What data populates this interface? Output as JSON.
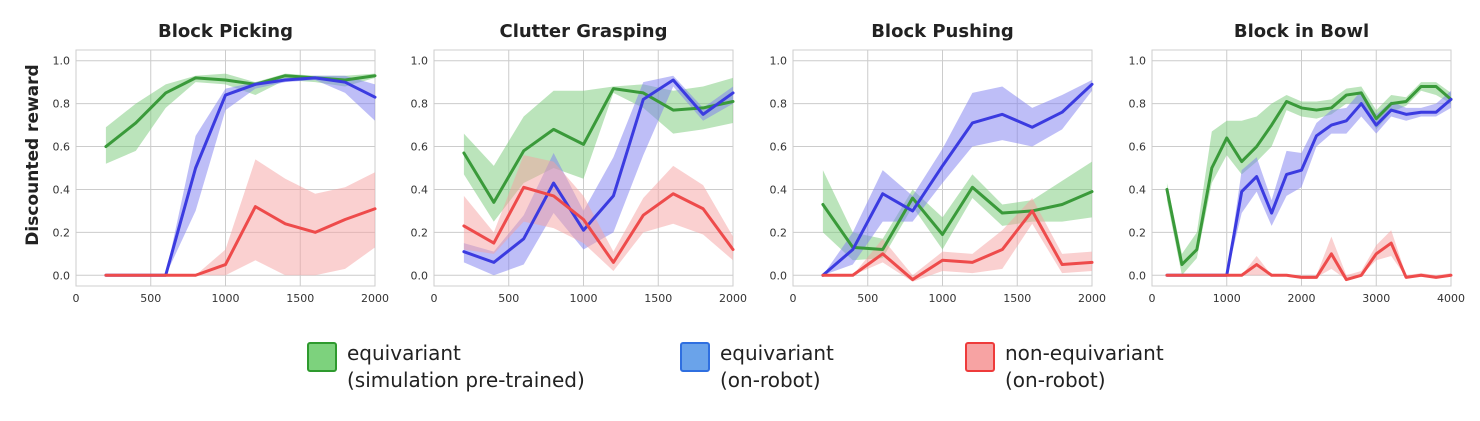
{
  "ylabel": "Discounted reward",
  "chart_data": [
    {
      "type": "line",
      "title": "Block Picking",
      "xlim": [
        0,
        2000
      ],
      "ylim": [
        -0.05,
        1.05
      ],
      "xticks": [
        0,
        500,
        1000,
        1500,
        2000
      ],
      "xtick_labels": [
        "0",
        "500",
        "1000",
        "1500",
        "2000"
      ],
      "yticks": [
        0.0,
        0.2,
        0.4,
        0.6,
        0.8,
        1.0
      ],
      "ytick_labels": [
        "0.0",
        "0.2",
        "0.4",
        "0.6",
        "0.8",
        "1.0"
      ],
      "grid": true,
      "x": [
        200,
        400,
        600,
        800,
        1000,
        1200,
        1400,
        1600,
        1800,
        2000
      ],
      "series": [
        {
          "key": "pre",
          "values": [
            0.6,
            0.71,
            0.85,
            0.92,
            0.91,
            0.89,
            0.93,
            0.92,
            0.91,
            0.93
          ],
          "lower": [
            0.52,
            0.58,
            0.78,
            0.9,
            0.89,
            0.84,
            0.91,
            0.9,
            0.88,
            0.92
          ],
          "upper": [
            0.69,
            0.8,
            0.89,
            0.93,
            0.94,
            0.9,
            0.94,
            0.93,
            0.93,
            0.94
          ]
        },
        {
          "key": "equi",
          "values": [
            0,
            0,
            0,
            0.5,
            0.84,
            0.89,
            0.91,
            0.92,
            0.9,
            0.83
          ],
          "lower": [
            0,
            0,
            0,
            0.3,
            0.77,
            0.87,
            0.9,
            0.91,
            0.85,
            0.72
          ],
          "upper": [
            0,
            0,
            0,
            0.65,
            0.87,
            0.9,
            0.92,
            0.93,
            0.93,
            0.89
          ]
        },
        {
          "key": "non",
          "values": [
            0,
            0,
            0,
            0,
            0.05,
            0.32,
            0.24,
            0.2,
            0.26,
            0.31
          ],
          "lower": [
            0,
            0,
            0,
            0,
            0.0,
            0.07,
            0.0,
            0.0,
            0.03,
            0.13
          ],
          "upper": [
            0,
            0,
            0,
            0,
            0.12,
            0.54,
            0.45,
            0.38,
            0.41,
            0.48
          ]
        }
      ]
    },
    {
      "type": "line",
      "title": "Clutter Grasping",
      "xlim": [
        0,
        2000
      ],
      "ylim": [
        -0.05,
        1.05
      ],
      "xticks": [
        0,
        500,
        1000,
        1500,
        2000
      ],
      "xtick_labels": [
        "0",
        "500",
        "1000",
        "1500",
        "2000"
      ],
      "yticks": [
        0.0,
        0.2,
        0.4,
        0.6,
        0.8,
        1.0
      ],
      "ytick_labels": [
        "0.0",
        "0.2",
        "0.4",
        "0.6",
        "0.8",
        "1.0"
      ],
      "grid": true,
      "x": [
        200,
        400,
        600,
        800,
        1000,
        1200,
        1400,
        1600,
        1800,
        2000
      ],
      "series": [
        {
          "key": "pre",
          "values": [
            0.57,
            0.34,
            0.58,
            0.68,
            0.61,
            0.87,
            0.85,
            0.77,
            0.78,
            0.81
          ],
          "lower": [
            0.47,
            0.25,
            0.43,
            0.5,
            0.45,
            0.85,
            0.78,
            0.66,
            0.68,
            0.71
          ],
          "upper": [
            0.66,
            0.51,
            0.74,
            0.86,
            0.86,
            0.88,
            0.89,
            0.86,
            0.88,
            0.92
          ]
        },
        {
          "key": "equi",
          "values": [
            0.11,
            0.06,
            0.17,
            0.43,
            0.21,
            0.37,
            0.82,
            0.91,
            0.75,
            0.85
          ],
          "lower": [
            0.06,
            0.0,
            0.05,
            0.29,
            0.12,
            0.2,
            0.56,
            0.88,
            0.72,
            0.8
          ],
          "upper": [
            0.15,
            0.11,
            0.28,
            0.57,
            0.3,
            0.55,
            0.9,
            0.93,
            0.78,
            0.88
          ]
        },
        {
          "key": "non",
          "values": [
            0.23,
            0.15,
            0.41,
            0.37,
            0.26,
            0.06,
            0.28,
            0.38,
            0.31,
            0.12
          ],
          "lower": [
            0.12,
            0.1,
            0.25,
            0.22,
            0.15,
            0.02,
            0.2,
            0.24,
            0.19,
            0.07
          ],
          "upper": [
            0.37,
            0.2,
            0.56,
            0.53,
            0.37,
            0.11,
            0.36,
            0.51,
            0.42,
            0.18
          ]
        }
      ]
    },
    {
      "type": "line",
      "title": "Block Pushing",
      "xlim": [
        0,
        2000
      ],
      "ylim": [
        -0.05,
        1.05
      ],
      "xticks": [
        0,
        500,
        1000,
        1500,
        2000
      ],
      "xtick_labels": [
        "0",
        "500",
        "1000",
        "1500",
        "2000"
      ],
      "yticks": [
        0.0,
        0.2,
        0.4,
        0.6,
        0.8,
        1.0
      ],
      "ytick_labels": [
        "0.0",
        "0.2",
        "0.4",
        "0.6",
        "0.8",
        "1.0"
      ],
      "grid": true,
      "x": [
        200,
        400,
        600,
        800,
        1000,
        1200,
        1400,
        1600,
        1800,
        2000
      ],
      "series": [
        {
          "key": "pre",
          "values": [
            0.33,
            0.13,
            0.12,
            0.36,
            0.19,
            0.41,
            0.29,
            0.3,
            0.33,
            0.39
          ],
          "lower": [
            0.2,
            0.07,
            0.08,
            0.32,
            0.12,
            0.36,
            0.23,
            0.25,
            0.25,
            0.27
          ],
          "upper": [
            0.49,
            0.2,
            0.17,
            0.4,
            0.27,
            0.47,
            0.33,
            0.35,
            0.44,
            0.53
          ]
        },
        {
          "key": "equi",
          "values": [
            0.0,
            0.12,
            0.38,
            0.3,
            0.51,
            0.71,
            0.75,
            0.69,
            0.76,
            0.89
          ],
          "lower": [
            0.0,
            0.05,
            0.25,
            0.25,
            0.43,
            0.6,
            0.63,
            0.6,
            0.68,
            0.86
          ],
          "upper": [
            0.0,
            0.2,
            0.49,
            0.37,
            0.59,
            0.85,
            0.88,
            0.78,
            0.84,
            0.91
          ]
        },
        {
          "key": "non",
          "values": [
            0.0,
            0.0,
            0.1,
            -0.02,
            0.07,
            0.06,
            0.12,
            0.3,
            0.05,
            0.06
          ],
          "lower": [
            0.0,
            0.0,
            0.06,
            -0.03,
            0.02,
            0.01,
            0.03,
            0.24,
            0.01,
            0.02
          ],
          "upper": [
            0.0,
            0.0,
            0.17,
            0.0,
            0.11,
            0.1,
            0.21,
            0.36,
            0.1,
            0.11
          ]
        }
      ]
    },
    {
      "type": "line",
      "title": "Block in Bowl",
      "xlim": [
        0,
        4000
      ],
      "ylim": [
        -0.05,
        1.05
      ],
      "xticks": [
        0,
        1000,
        2000,
        3000,
        4000
      ],
      "xtick_labels": [
        "0",
        "1000",
        "2000",
        "3000",
        "4000"
      ],
      "yticks": [
        0.0,
        0.2,
        0.4,
        0.6,
        0.8,
        1.0
      ],
      "ytick_labels": [
        "0.0",
        "0.2",
        "0.4",
        "0.6",
        "0.8",
        "1.0"
      ],
      "grid": true,
      "x": [
        200,
        400,
        600,
        800,
        1000,
        1200,
        1400,
        1600,
        1800,
        2000,
        2200,
        2400,
        2600,
        2800,
        3000,
        3200,
        3400,
        3600,
        3800,
        4000
      ],
      "series": [
        {
          "key": "pre",
          "values": [
            0.4,
            0.05,
            0.12,
            0.5,
            0.64,
            0.53,
            0.6,
            0.7,
            0.81,
            0.78,
            0.77,
            0.78,
            0.84,
            0.85,
            0.73,
            0.8,
            0.81,
            0.88,
            0.88,
            0.82
          ],
          "lower": [
            0.35,
            0.0,
            0.08,
            0.43,
            0.56,
            0.47,
            0.53,
            0.6,
            0.77,
            0.74,
            0.73,
            0.75,
            0.8,
            0.8,
            0.68,
            0.76,
            0.79,
            0.86,
            0.84,
            0.8
          ],
          "upper": [
            0.43,
            0.1,
            0.2,
            0.67,
            0.72,
            0.72,
            0.74,
            0.8,
            0.84,
            0.81,
            0.81,
            0.82,
            0.87,
            0.88,
            0.77,
            0.84,
            0.83,
            0.9,
            0.9,
            0.85
          ]
        },
        {
          "key": "equi",
          "values": [
            0,
            0,
            0,
            0,
            0,
            0.39,
            0.46,
            0.29,
            0.47,
            0.49,
            0.65,
            0.7,
            0.72,
            0.8,
            0.7,
            0.77,
            0.75,
            0.76,
            0.76,
            0.82
          ],
          "lower": [
            0,
            0,
            0,
            0,
            0,
            0.29,
            0.39,
            0.23,
            0.37,
            0.41,
            0.6,
            0.66,
            0.66,
            0.74,
            0.66,
            0.74,
            0.72,
            0.74,
            0.74,
            0.78
          ],
          "upper": [
            0,
            0,
            0,
            0,
            0,
            0.49,
            0.55,
            0.35,
            0.58,
            0.57,
            0.71,
            0.77,
            0.78,
            0.86,
            0.75,
            0.81,
            0.78,
            0.78,
            0.8,
            0.86
          ]
        },
        {
          "key": "non",
          "values": [
            0,
            0,
            0,
            0,
            0,
            0,
            0.05,
            0.0,
            0.0,
            -0.01,
            -0.01,
            0.1,
            -0.02,
            0.0,
            0.1,
            0.15,
            -0.01,
            0.0,
            -0.01,
            0.0
          ],
          "lower": [
            0,
            0,
            0,
            0,
            0,
            0,
            0.0,
            0.0,
            0.0,
            -0.01,
            -0.01,
            0.03,
            -0.02,
            0.0,
            0.07,
            0.09,
            -0.01,
            0.0,
            -0.01,
            0.0
          ],
          "upper": [
            0,
            0,
            0,
            0,
            0,
            0,
            0.09,
            0.0,
            0.0,
            0.0,
            0.0,
            0.18,
            0.0,
            0.02,
            0.14,
            0.21,
            0.0,
            0.01,
            0.0,
            0.01
          ]
        }
      ]
    }
  ],
  "series_style": {
    "pre": {
      "line": "#3a9a3a",
      "band": "#77c977"
    },
    "equi": {
      "line": "#3b3be0",
      "band": "#7d7df0"
    },
    "non": {
      "line": "#ee4b4b",
      "band": "#f5a2a2"
    }
  },
  "legend": [
    {
      "key": "pre",
      "line1": "equivariant",
      "line2": "(simulation pre-trained)",
      "fill": "#7dd27d",
      "border": "#2e9a2e"
    },
    {
      "key": "equi",
      "line1": "equivariant",
      "line2": "(on-robot)",
      "fill": "#6aa3ea",
      "border": "#2f6fe0"
    },
    {
      "key": "non",
      "line1": "non-equivariant",
      "line2": "(on-robot)",
      "fill": "#f7a3a3",
      "border": "#ee3b3b"
    }
  ]
}
